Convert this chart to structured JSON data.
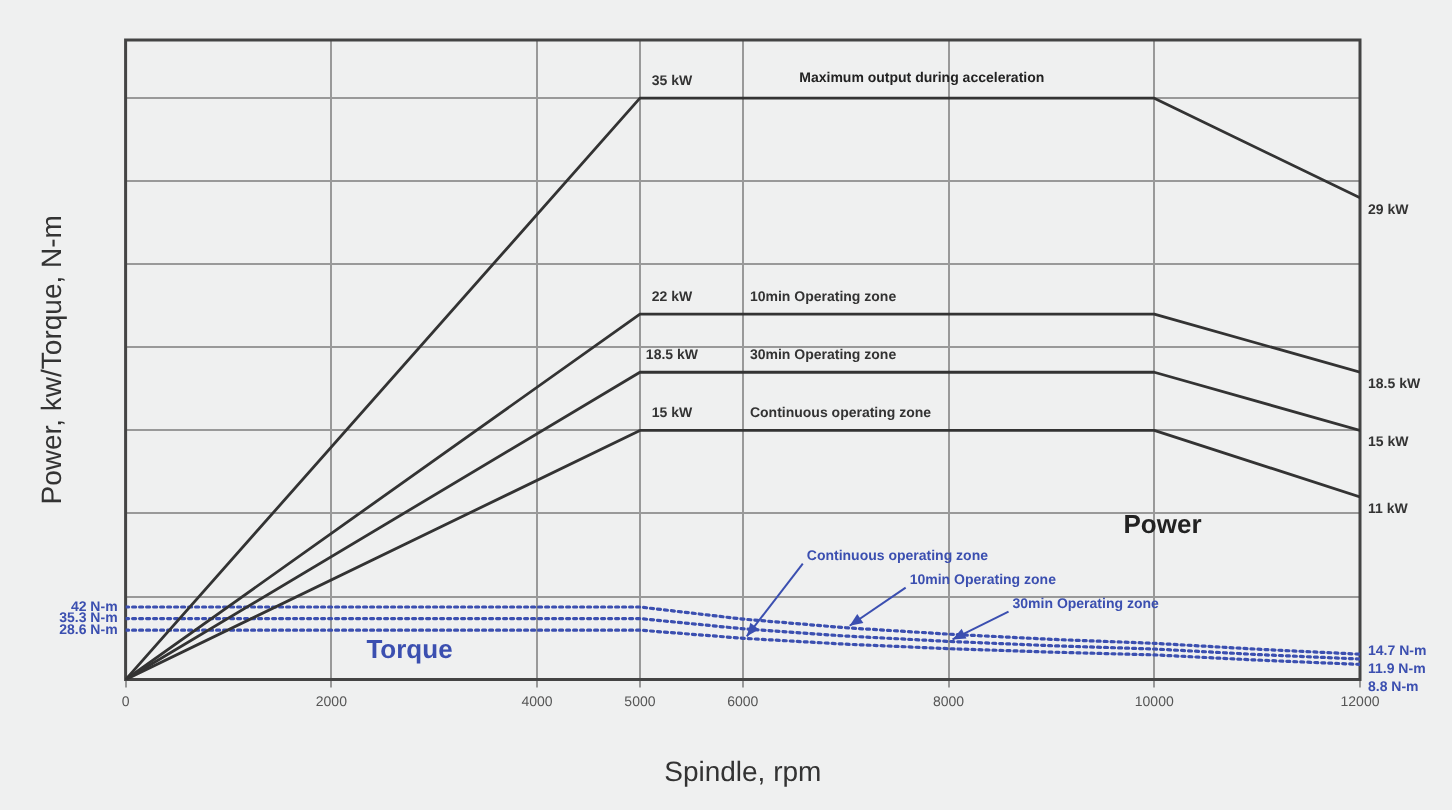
{
  "chart_data": {
    "type": "line",
    "xlabel": "Spindle, rpm",
    "ylabel": "Power, kw/Torque, N-m",
    "x": [
      0,
      5000,
      10000,
      12000
    ],
    "xlim": [
      0,
      12000
    ],
    "xticks": [
      0,
      2000,
      4000,
      5000,
      6000,
      8000,
      10000,
      12000
    ],
    "ylim": [
      0,
      38.5
    ],
    "yticks": [
      {
        "value": 5,
        "label": null
      },
      {
        "value": 10,
        "label": null
      },
      {
        "value": 15,
        "label": null
      },
      {
        "value": 20,
        "label": null
      },
      {
        "value": 25,
        "label": null
      },
      {
        "value": 30,
        "label": null
      },
      {
        "value": 35,
        "label": null
      }
    ],
    "y2lim": [
      0,
      370
    ],
    "tick_labels": "x",
    "grid": true,
    "legend": false,
    "marker": "none",
    "series": [
      {
        "color": "#333333",
        "line_style": "solid",
        "values": [
          0,
          35,
          35,
          29
        ],
        "value_labels": [
          null,
          "35 kW",
          null,
          "29 kW"
        ]
      },
      {
        "name": "10min Operating zone",
        "color": "#333333",
        "line_style": "solid",
        "values": [
          0,
          22,
          22,
          18.5
        ],
        "value_labels": [
          null,
          "22 kW",
          null,
          "18.5 kW"
        ]
      },
      {
        "name": "30min Operating zone",
        "color": "#333333",
        "line_style": "solid",
        "values": [
          0,
          18.5,
          18.5,
          15
        ],
        "value_labels": [
          null,
          "18.5 kW",
          null,
          "15 kW"
        ]
      },
      {
        "name": "Continuous operating zone",
        "color": "#333333",
        "line_style": "solid",
        "values": [
          0,
          15,
          15,
          11
        ],
        "value_labels": [
          null,
          "15 kW",
          null,
          "11 kW"
        ]
      },
      {
        "name": "10min Operating zone",
        "axis": "y2",
        "color": "#3b4fb0",
        "line_style": "dotted",
        "x": [
          0,
          5000,
          6000,
          7000,
          8000,
          9000,
          10000,
          11000,
          12000
        ],
        "values": [
          42,
          42,
          35,
          30,
          26.3,
          23.3,
          21,
          17.6,
          14.7
        ],
        "value_labels": [
          "42 N-m",
          null,
          null,
          null,
          null,
          null,
          null,
          null,
          "14.7 N-m"
        ]
      },
      {
        "name": "30min Operating zone",
        "axis": "y2",
        "color": "#3b4fb0",
        "line_style": "dotted",
        "x": [
          0,
          5000,
          6000,
          7000,
          8000,
          9000,
          10000,
          11000,
          12000
        ],
        "values": [
          35.3,
          35.3,
          29.4,
          25.2,
          22.1,
          19.6,
          17.7,
          14.5,
          11.9
        ],
        "value_labels": [
          "35.3 N-m",
          null,
          null,
          null,
          null,
          null,
          null,
          null,
          "11.9 N-m"
        ]
      },
      {
        "name": "Continuous operating zone",
        "axis": "y2",
        "color": "#3b4fb0",
        "line_style": "dotted",
        "x": [
          0,
          5000,
          6000,
          7000,
          8000,
          9000,
          10000,
          11000,
          12000
        ],
        "values": [
          28.6,
          28.6,
          23.9,
          20.5,
          17.9,
          15.9,
          14.3,
          11.3,
          8.8
        ],
        "value_labels": [
          "28.6 N-m",
          null,
          null,
          null,
          null,
          null,
          null,
          null,
          "8.8 N-m"
        ]
      }
    ],
    "annotations": [
      "Maximum output during acceleration",
      "Power",
      "Torque"
    ]
  }
}
